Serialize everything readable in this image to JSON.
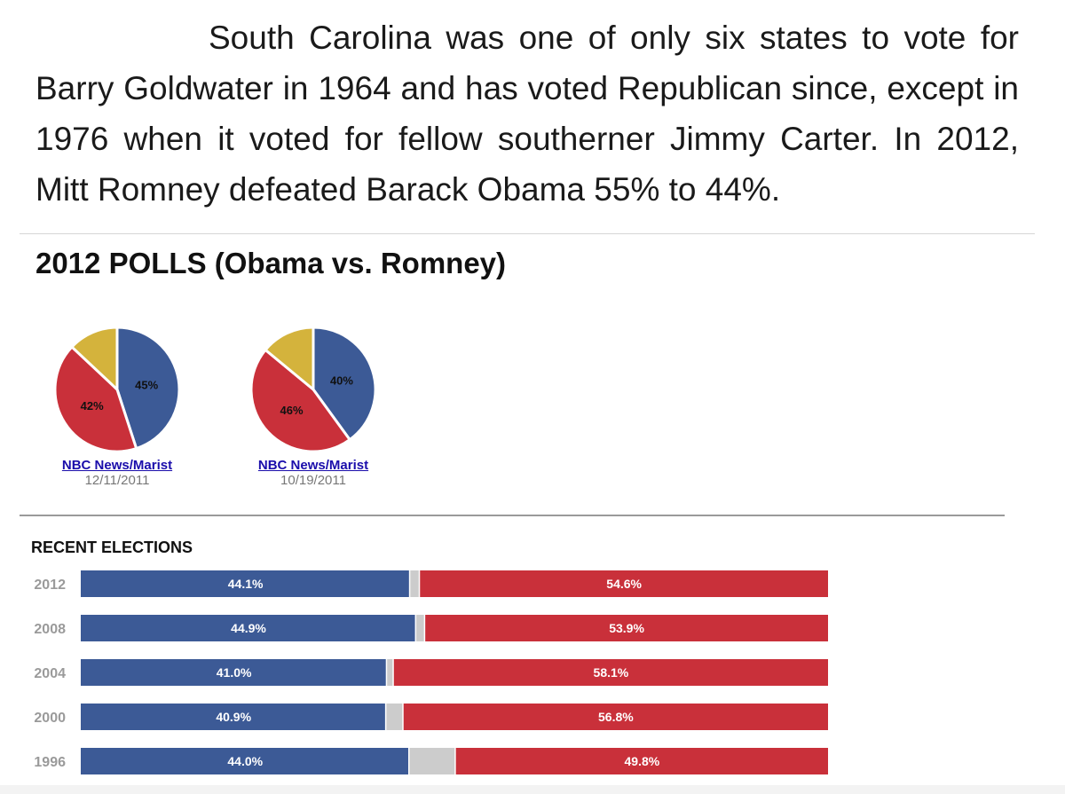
{
  "intro": "South Carolina was one of only six states to vote for Barry Goldwater in 1964 and has voted Republican since, except in 1976 when it voted for fellow southerner Jimmy Carter. In 2012, Mitt Romney defeated Barack Obama 55% to 44%.",
  "polls": {
    "title": "2012 POLLS (Obama vs. Romney)"
  },
  "elections_title": "RECENT ELECTIONS",
  "chart_data": [
    {
      "type": "pie",
      "source": "NBC News/Marist",
      "date": "12/11/2011",
      "slices": [
        {
          "label": "45%",
          "value": 45,
          "color": "#3c5a96"
        },
        {
          "label": "42%",
          "value": 42,
          "color": "#c9303a"
        },
        {
          "label": "",
          "value": 13,
          "color": "#d4b33c"
        }
      ]
    },
    {
      "type": "pie",
      "source": "NBC News/Marist",
      "date": "10/19/2011",
      "slices": [
        {
          "label": "40%",
          "value": 40,
          "color": "#3c5a96"
        },
        {
          "label": "46%",
          "value": 46,
          "color": "#c9303a"
        },
        {
          "label": "",
          "value": 14,
          "color": "#d4b33c"
        }
      ]
    },
    {
      "type": "bar",
      "stacked": true,
      "orientation": "horizontal",
      "categories": [
        "2012",
        "2008",
        "2004",
        "2000",
        "1996"
      ],
      "series": [
        {
          "values": [
            44.1,
            44.9,
            41.0,
            40.9,
            44.0
          ],
          "color": "#3c5a96",
          "labels": [
            "44.1%",
            "44.9%",
            "41.0%",
            "40.9%",
            "44.0%"
          ]
        },
        {
          "values": [
            1.3,
            1.2,
            0.9,
            2.3,
            6.2
          ],
          "color": "#cccccc"
        },
        {
          "values": [
            54.6,
            53.9,
            58.1,
            56.8,
            49.8
          ],
          "color": "#c9303a",
          "labels": [
            "54.6%",
            "53.9%",
            "58.1%",
            "56.8%",
            "49.8%"
          ]
        }
      ]
    }
  ]
}
